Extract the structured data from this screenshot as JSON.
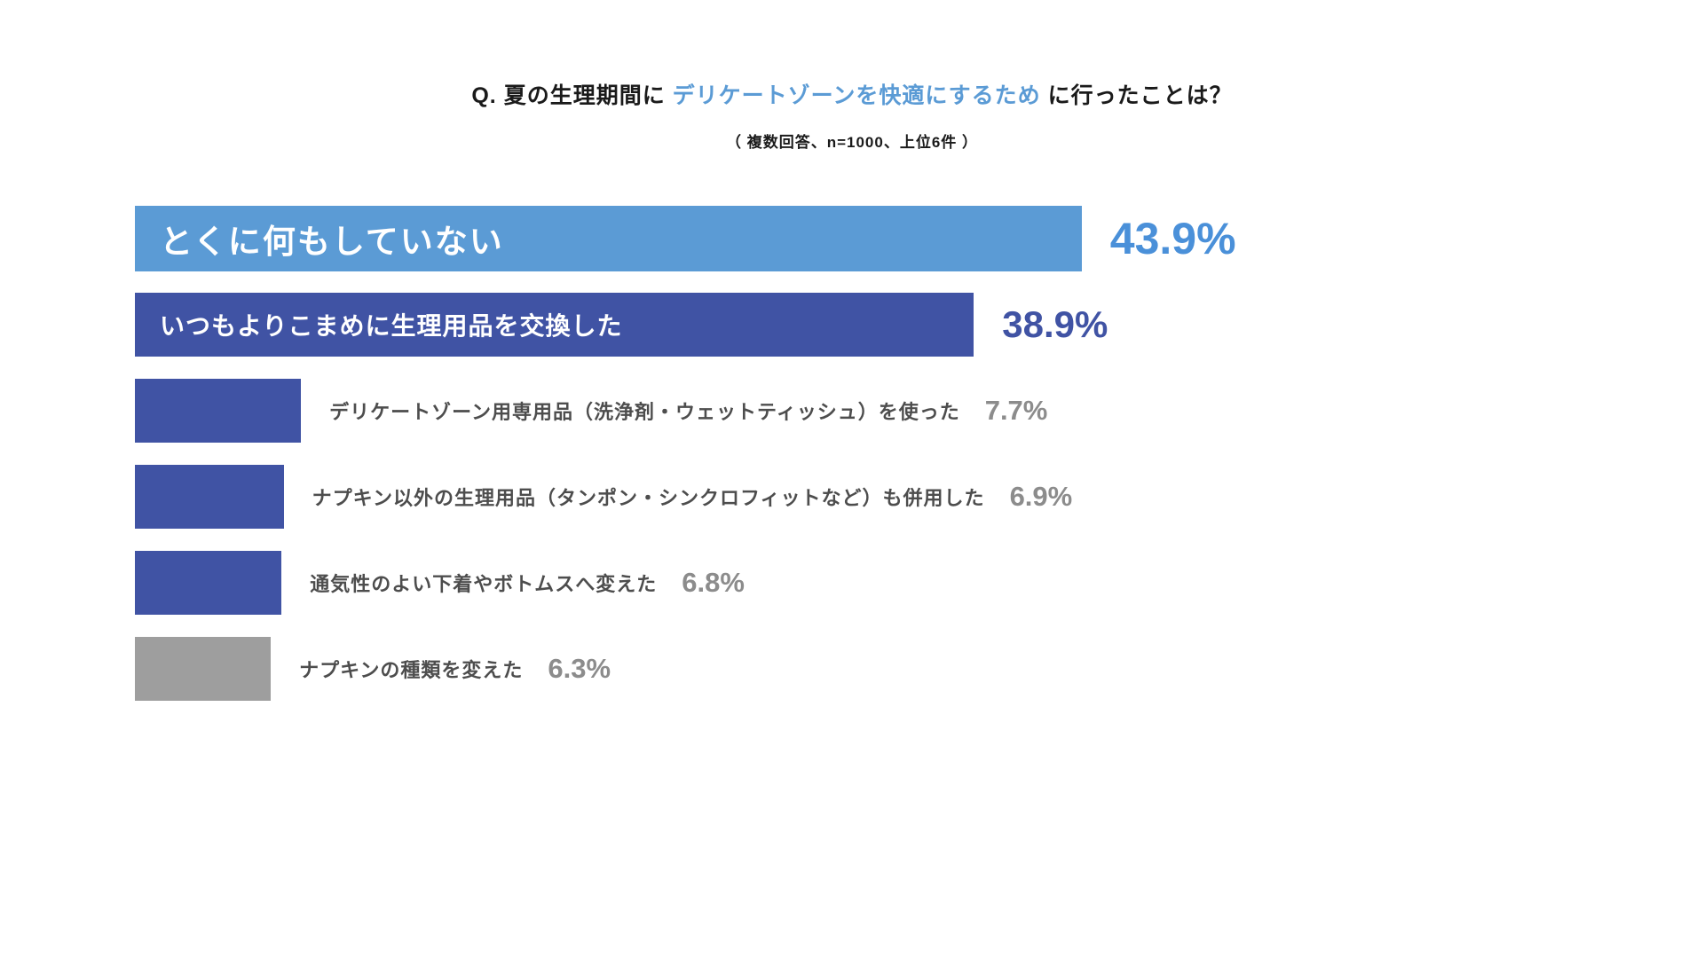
{
  "header": {
    "title_prefix": "Q. 夏の生理期間に ",
    "title_highlight": "デリケートゾーンを快適にするため",
    "title_suffix": " に行ったことは？",
    "subtitle": "（ 複数回答、n=1000、上位6件 ）"
  },
  "chart_data": {
    "type": "bar",
    "orientation": "horizontal",
    "title": "Q. 夏の生理期間に デリケートゾーンを快適にするため に行ったことは？",
    "subtitle": "（ 複数回答、n=1000、上位6件 ）",
    "unit": "%",
    "xlim": [
      0,
      45
    ],
    "categories": [
      "とくに何もしていない",
      "いつもよりこまめに生理用品を交換した",
      "デリケートゾーン用専用品（洗浄剤・ウェットティッシュ）を使った",
      "ナプキン以外の生理用品（タンポン・シンクロフィットなど）も併用した",
      "通気性のよい下着やボトムスへ変えた",
      "ナプキンの種類を変えた"
    ],
    "values": [
      43.9,
      38.9,
      7.7,
      6.9,
      6.8,
      6.3
    ],
    "colors": {
      "bar_highlight": "#5b9bd5",
      "bar_main": "#4053a4",
      "bar_gray": "#9e9e9e",
      "value_highlight": "#4a90d9",
      "value_main": "#4053a4",
      "value_gray": "#8c8c8c",
      "label_outside": "#4d4d4d"
    },
    "rows": [
      {
        "label": "とくに何もしていない",
        "value": 43.9,
        "value_label": "43.9%",
        "bar_color": "blue-light",
        "label_position": "inside"
      },
      {
        "label": "いつもよりこまめに生理用品を交換した",
        "value": 38.9,
        "value_label": "38.9%",
        "bar_color": "blue-dark",
        "label_position": "inside"
      },
      {
        "label": "デリケートゾーン用専用品（洗浄剤・ウェットティッシュ）を使った",
        "value": 7.7,
        "value_label": "7.7%",
        "bar_color": "blue-dark",
        "label_position": "outside"
      },
      {
        "label": "ナプキン以外の生理用品（タンポン・シンクロフィットなど）も併用した",
        "value": 6.9,
        "value_label": "6.9%",
        "bar_color": "blue-dark",
        "label_position": "outside"
      },
      {
        "label": "通気性のよい下着やボトムスへ変えた",
        "value": 6.8,
        "value_label": "6.8%",
        "bar_color": "blue-dark",
        "label_position": "outside"
      },
      {
        "label": "ナプキンの種類を変えた",
        "value": 6.3,
        "value_label": "6.3%",
        "bar_color": "gray",
        "label_position": "outside"
      }
    ]
  }
}
